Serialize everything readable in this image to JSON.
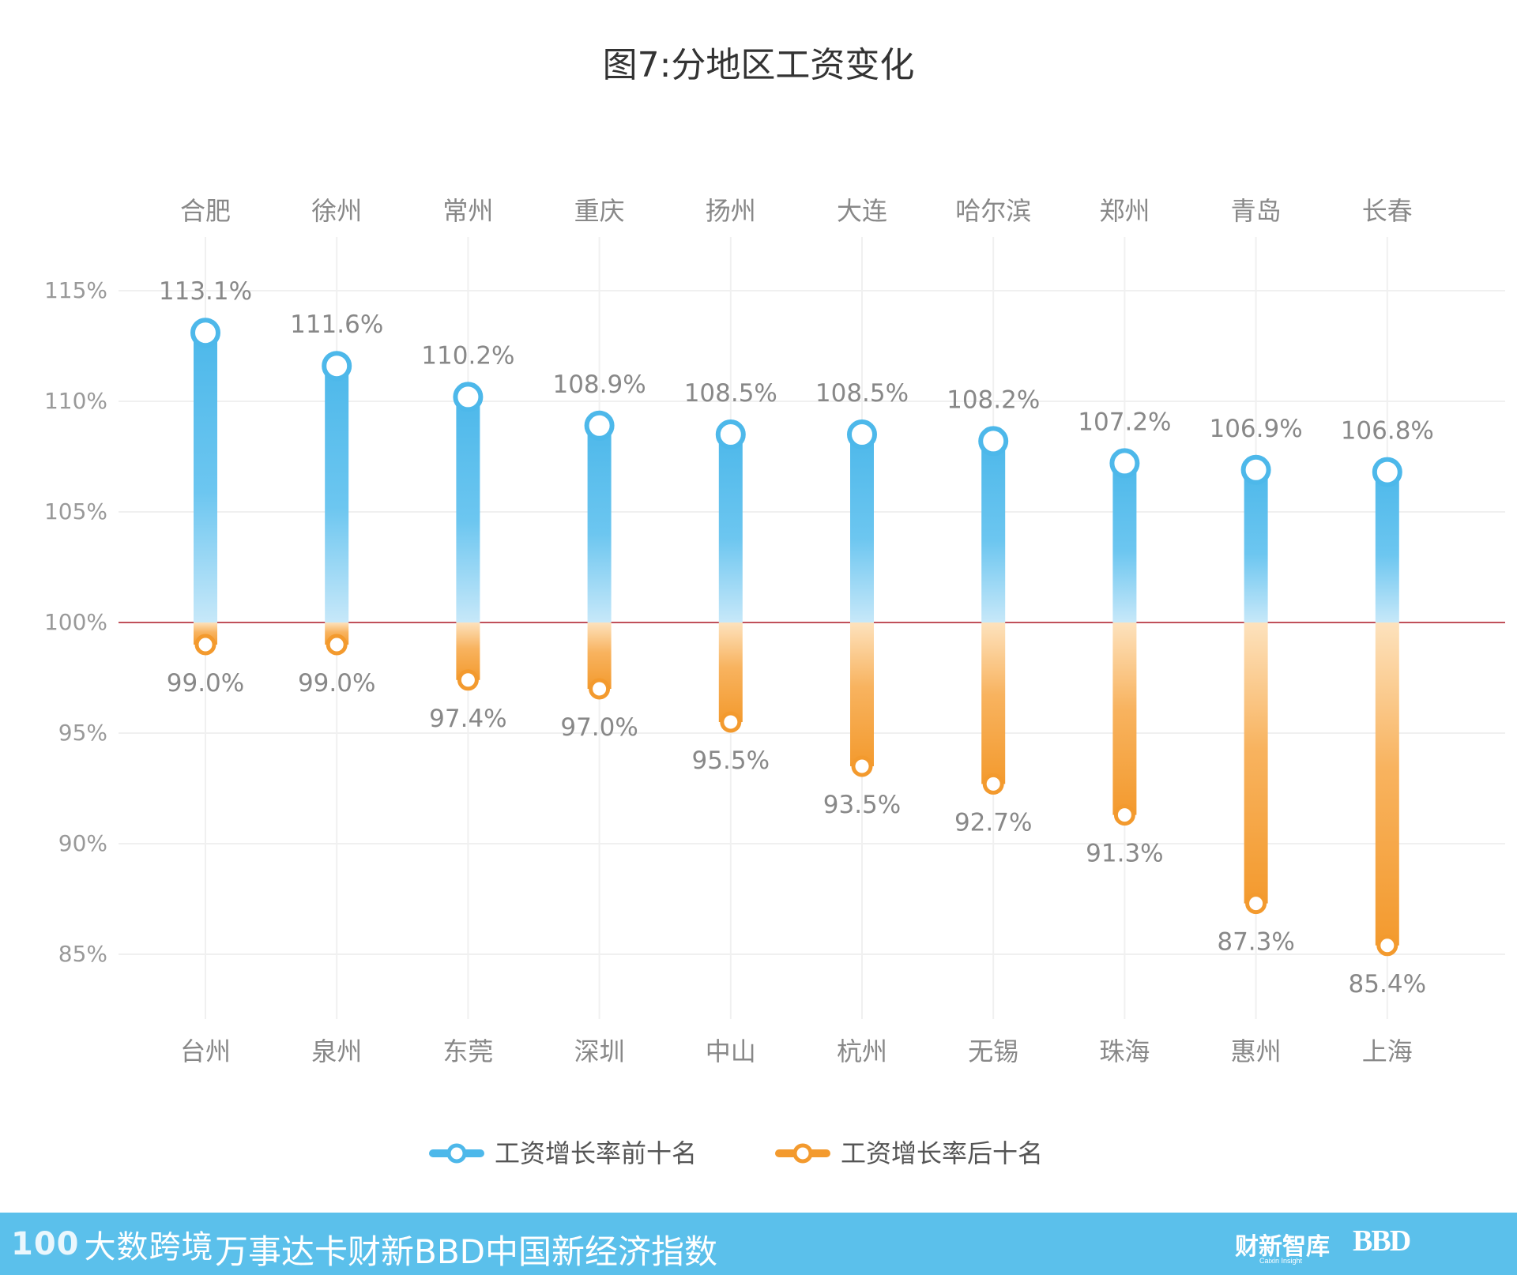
{
  "chart_data": {
    "type": "bar",
    "title": "图7:分地区工资变化",
    "ylim": [
      80,
      117
    ],
    "yticks": [
      "115%",
      "110%",
      "105%",
      "100%",
      "95%",
      "90%",
      "85%"
    ],
    "ytick_values": [
      115,
      110,
      105,
      100,
      95,
      90,
      85
    ],
    "baseline": 100,
    "grid": true,
    "legend_position": "bottom-center",
    "series": [
      {
        "name": "工资增长率前十名",
        "color": "#4db8ea",
        "categories": [
          "合肥",
          "徐州",
          "常州",
          "重庆",
          "扬州",
          "大连",
          "哈尔滨",
          "郑州",
          "青岛",
          "长春"
        ],
        "values": [
          113.1,
          111.6,
          110.2,
          108.9,
          108.5,
          108.5,
          108.2,
          107.2,
          106.9,
          106.8
        ],
        "labels": [
          "113.1%",
          "111.6%",
          "110.2%",
          "108.9%",
          "108.5%",
          "108.5%",
          "108.2%",
          "107.2%",
          "106.9%",
          "106.8%"
        ]
      },
      {
        "name": "工资增长率后十名",
        "color": "#f39a2e",
        "categories": [
          "台州",
          "泉州",
          "东莞",
          "深圳",
          "中山",
          "杭州",
          "无锡",
          "珠海",
          "惠州",
          "上海"
        ],
        "values": [
          99.0,
          99.0,
          97.4,
          97.0,
          95.5,
          93.5,
          92.7,
          91.3,
          87.3,
          85.4
        ],
        "labels": [
          "99.0%",
          "99.0%",
          "97.4%",
          "97.0%",
          "95.5%",
          "93.5%",
          "92.7%",
          "91.3%",
          "87.3%",
          "85.4%"
        ]
      }
    ]
  },
  "footer": {
    "brand_left": "大数跨境",
    "brand_left_mark": "100",
    "index_title": "万事达卡财新BBD中国新经济指数",
    "partner_1": "财新智库",
    "partner_1_sub": "Caixin Insight",
    "partner_2": "BBD"
  }
}
